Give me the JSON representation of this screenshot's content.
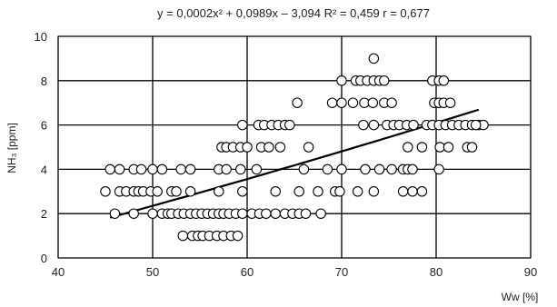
{
  "chart_data": {
    "type": "scatter",
    "title": "y = 0,0002x² + 0,0989x – 3,094   R² = 0,459  r = 0,677",
    "xlabel": "Ww [%]",
    "ylabel": "NH₃ [ppm]",
    "xlim": [
      40,
      90
    ],
    "ylim": [
      0,
      10
    ],
    "x_ticks": [
      "40",
      "50",
      "60",
      "70",
      "80",
      "90"
    ],
    "y_ticks": [
      "0",
      "2",
      "4",
      "6",
      "8",
      "10"
    ],
    "grid": true,
    "legend": "none",
    "marker_color": "#000000",
    "marker_fill": "#ffffff",
    "trendline": {
      "type": "polynomial",
      "coefficients": {
        "a2": 0.0002,
        "a1": 0.0989,
        "a0": -3.094
      },
      "x_range": [
        45.5,
        84.5
      ],
      "color": "#000000"
    },
    "series": [
      {
        "points": [
          [
            45.5,
            4
          ],
          [
            46.5,
            4
          ],
          [
            48,
            4
          ],
          [
            48.8,
            4
          ],
          [
            50,
            4
          ],
          [
            51,
            4
          ],
          [
            53,
            4
          ],
          [
            54,
            4
          ],
          [
            57,
            4
          ],
          [
            57.8,
            4
          ],
          [
            59.3,
            4
          ],
          [
            61,
            4
          ],
          [
            66,
            4
          ],
          [
            68.5,
            4
          ],
          [
            70,
            4
          ],
          [
            72.5,
            4
          ],
          [
            74,
            4
          ],
          [
            75.3,
            4
          ],
          [
            76.5,
            4
          ],
          [
            77,
            4
          ],
          [
            77.5,
            4
          ],
          [
            80.3,
            4
          ],
          [
            45,
            3
          ],
          [
            46.5,
            3
          ],
          [
            47.2,
            3
          ],
          [
            48,
            3
          ],
          [
            48.5,
            3
          ],
          [
            49,
            3
          ],
          [
            49.8,
            3
          ],
          [
            50.5,
            3
          ],
          [
            52,
            3
          ],
          [
            52.5,
            3
          ],
          [
            54,
            3
          ],
          [
            57,
            3
          ],
          [
            59.5,
            3
          ],
          [
            63,
            3
          ],
          [
            65.5,
            3
          ],
          [
            67.5,
            3
          ],
          [
            69.3,
            3
          ],
          [
            69.8,
            3
          ],
          [
            71.7,
            3
          ],
          [
            73.4,
            3
          ],
          [
            76.5,
            3
          ],
          [
            77.5,
            3
          ],
          [
            78.5,
            3
          ],
          [
            46,
            2
          ],
          [
            48,
            2
          ],
          [
            50,
            2
          ],
          [
            51,
            2
          ],
          [
            51.6,
            2
          ],
          [
            52,
            2
          ],
          [
            52.7,
            2
          ],
          [
            53.3,
            2
          ],
          [
            54,
            2
          ],
          [
            54.6,
            2
          ],
          [
            55.2,
            2
          ],
          [
            55.8,
            2
          ],
          [
            56.4,
            2
          ],
          [
            57,
            2
          ],
          [
            57.5,
            2
          ],
          [
            58.1,
            2
          ],
          [
            58.8,
            2
          ],
          [
            59.5,
            2
          ],
          [
            60.5,
            2
          ],
          [
            61.3,
            2
          ],
          [
            62,
            2
          ],
          [
            63,
            2
          ],
          [
            64,
            2
          ],
          [
            64.8,
            2
          ],
          [
            65.5,
            2
          ],
          [
            66.2,
            2
          ],
          [
            67.8,
            2
          ],
          [
            53.2,
            1
          ],
          [
            54.2,
            1
          ],
          [
            54.8,
            1
          ],
          [
            55.3,
            1
          ],
          [
            56,
            1
          ],
          [
            56.8,
            1
          ],
          [
            57.5,
            1
          ],
          [
            58.3,
            1
          ],
          [
            59,
            1
          ],
          [
            57.3,
            5
          ],
          [
            57.8,
            5
          ],
          [
            58.5,
            5
          ],
          [
            59.3,
            5
          ],
          [
            60,
            5
          ],
          [
            61.5,
            5
          ],
          [
            62.3,
            5
          ],
          [
            63.5,
            5
          ],
          [
            66.5,
            5
          ],
          [
            77,
            5
          ],
          [
            78.5,
            5
          ],
          [
            80.4,
            5
          ],
          [
            81.3,
            5
          ],
          [
            83.3,
            5
          ],
          [
            83.8,
            5
          ],
          [
            59.5,
            6
          ],
          [
            61.2,
            6
          ],
          [
            61.8,
            6
          ],
          [
            62.6,
            6
          ],
          [
            63.3,
            6
          ],
          [
            64,
            6
          ],
          [
            64.5,
            6
          ],
          [
            72.3,
            6
          ],
          [
            73.4,
            6
          ],
          [
            74.8,
            6
          ],
          [
            75.5,
            6
          ],
          [
            76.1,
            6
          ],
          [
            76.9,
            6
          ],
          [
            77.6,
            6
          ],
          [
            79,
            6
          ],
          [
            79.6,
            6
          ],
          [
            80.3,
            6
          ],
          [
            81,
            6
          ],
          [
            81.7,
            6
          ],
          [
            82.4,
            6
          ],
          [
            83.1,
            6
          ],
          [
            83.8,
            6
          ],
          [
            84.5,
            6
          ],
          [
            85,
            6
          ],
          [
            84.2,
            6
          ],
          [
            65.3,
            7
          ],
          [
            69,
            7
          ],
          [
            70,
            7
          ],
          [
            71.2,
            7
          ],
          [
            72.4,
            7
          ],
          [
            73.3,
            7
          ],
          [
            74.5,
            7
          ],
          [
            75.3,
            7
          ],
          [
            79.8,
            7
          ],
          [
            80.3,
            7
          ],
          [
            80.8,
            7
          ],
          [
            81.5,
            7
          ],
          [
            70,
            8
          ],
          [
            71.5,
            8
          ],
          [
            72,
            8
          ],
          [
            72.7,
            8
          ],
          [
            73.4,
            8
          ],
          [
            74,
            8
          ],
          [
            74.5,
            8
          ],
          [
            79.6,
            8
          ],
          [
            80.3,
            8
          ],
          [
            80.8,
            8
          ],
          [
            73.4,
            9
          ]
        ]
      }
    ]
  }
}
